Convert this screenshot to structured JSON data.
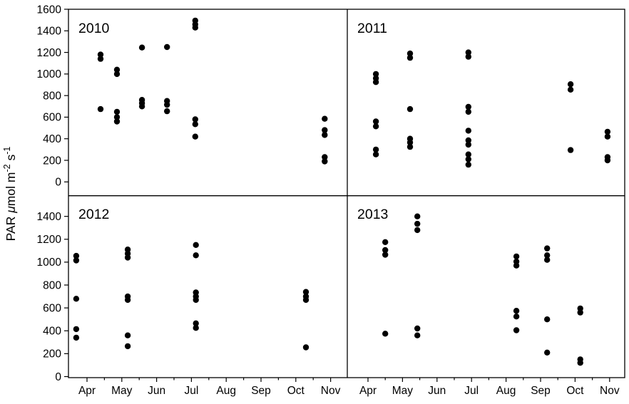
{
  "figure": {
    "background": "#ffffff",
    "axis_color": "#000000",
    "text_color": "#000000",
    "ylabel_parts": [
      {
        "text": "PAR "
      },
      {
        "text": "μ",
        "italic": true
      },
      {
        "text": "mol m"
      },
      {
        "text": "-2",
        "sup": true
      },
      {
        "text": " s"
      },
      {
        "text": "-1",
        "sup": true
      }
    ]
  },
  "chart_data": {
    "type": "scatter",
    "title": "",
    "ylabel": "PAR μmol m⁻² s⁻¹",
    "xlabel": "",
    "x_tick_labels": [
      "Apr",
      "May",
      "Jun",
      "Jul",
      "Aug",
      "Sep",
      "Oct",
      "Nov"
    ],
    "y_tick_labels_top": [
      0,
      200,
      400,
      600,
      800,
      1000,
      1200,
      1400,
      1600
    ],
    "y_tick_labels_bottom": [
      0,
      200,
      400,
      600,
      800,
      1000,
      1200,
      1400
    ],
    "ylim_top": [
      -128,
      1600
    ],
    "ylim_bottom": [
      0,
      1580
    ],
    "grid": false,
    "legend": false,
    "marker": {
      "shape": "circle",
      "radius_px": 4.2,
      "color": "#000000"
    },
    "x_months_note": "x values are months: 4.0 = Apr tick, 5.0 = May tick, ... 11.0 = Nov tick",
    "panels": [
      {
        "year": "2010",
        "row": 0,
        "col": 0,
        "points": [
          [
            4.39,
            1180
          ],
          [
            4.39,
            1140
          ],
          [
            4.39,
            675
          ],
          [
            4.86,
            1040
          ],
          [
            4.86,
            1000
          ],
          [
            4.86,
            650
          ],
          [
            4.86,
            600
          ],
          [
            4.86,
            560
          ],
          [
            5.58,
            1245
          ],
          [
            5.58,
            760
          ],
          [
            5.58,
            730
          ],
          [
            5.58,
            700
          ],
          [
            6.3,
            1250
          ],
          [
            6.3,
            750
          ],
          [
            6.3,
            715
          ],
          [
            6.3,
            655
          ],
          [
            7.11,
            1495
          ],
          [
            7.11,
            1460
          ],
          [
            7.11,
            1430
          ],
          [
            7.11,
            580
          ],
          [
            7.11,
            535
          ],
          [
            7.11,
            420
          ],
          [
            10.83,
            585
          ],
          [
            10.83,
            480
          ],
          [
            10.83,
            435
          ],
          [
            10.83,
            230
          ],
          [
            10.83,
            190
          ]
        ]
      },
      {
        "year": "2011",
        "row": 0,
        "col": 1,
        "points": [
          [
            4.23,
            1000
          ],
          [
            4.23,
            960
          ],
          [
            4.23,
            925
          ],
          [
            4.23,
            560
          ],
          [
            4.23,
            515
          ],
          [
            4.23,
            300
          ],
          [
            4.23,
            255
          ],
          [
            5.22,
            1190
          ],
          [
            5.22,
            1150
          ],
          [
            5.22,
            675
          ],
          [
            5.22,
            400
          ],
          [
            5.22,
            365
          ],
          [
            5.22,
            325
          ],
          [
            6.91,
            1200
          ],
          [
            6.91,
            1160
          ],
          [
            6.91,
            695
          ],
          [
            6.91,
            650
          ],
          [
            6.91,
            475
          ],
          [
            6.91,
            385
          ],
          [
            6.91,
            345
          ],
          [
            6.91,
            255
          ],
          [
            6.91,
            210
          ],
          [
            6.91,
            160
          ],
          [
            9.87,
            905
          ],
          [
            9.87,
            855
          ],
          [
            9.87,
            295
          ],
          [
            10.94,
            465
          ],
          [
            10.94,
            420
          ],
          [
            10.94,
            230
          ],
          [
            10.94,
            200
          ]
        ]
      },
      {
        "year": "2012",
        "row": 1,
        "col": 0,
        "points": [
          [
            3.69,
            1055
          ],
          [
            3.69,
            1015
          ],
          [
            3.69,
            680
          ],
          [
            3.69,
            415
          ],
          [
            3.69,
            340
          ],
          [
            5.17,
            1110
          ],
          [
            5.17,
            1075
          ],
          [
            5.17,
            1040
          ],
          [
            5.17,
            700
          ],
          [
            5.17,
            670
          ],
          [
            5.17,
            360
          ],
          [
            5.17,
            265
          ],
          [
            7.13,
            1150
          ],
          [
            7.13,
            1060
          ],
          [
            7.13,
            735
          ],
          [
            7.13,
            700
          ],
          [
            7.13,
            670
          ],
          [
            7.13,
            465
          ],
          [
            7.13,
            425
          ],
          [
            10.29,
            740
          ],
          [
            10.29,
            700
          ],
          [
            10.29,
            670
          ],
          [
            10.29,
            255
          ]
        ]
      },
      {
        "year": "2013",
        "row": 1,
        "col": 1,
        "points": [
          [
            4.5,
            1175
          ],
          [
            4.5,
            1105
          ],
          [
            4.5,
            1065
          ],
          [
            4.5,
            375
          ],
          [
            5.43,
            1400
          ],
          [
            5.43,
            1335
          ],
          [
            5.43,
            1280
          ],
          [
            5.43,
            420
          ],
          [
            5.43,
            360
          ],
          [
            8.3,
            1050
          ],
          [
            8.3,
            1005
          ],
          [
            8.3,
            970
          ],
          [
            8.3,
            575
          ],
          [
            8.3,
            525
          ],
          [
            8.3,
            405
          ],
          [
            9.19,
            1120
          ],
          [
            9.19,
            1060
          ],
          [
            9.19,
            1020
          ],
          [
            9.19,
            500
          ],
          [
            9.19,
            210
          ],
          [
            10.15,
            595
          ],
          [
            10.15,
            560
          ],
          [
            10.15,
            150
          ],
          [
            10.15,
            120
          ]
        ]
      }
    ]
  }
}
